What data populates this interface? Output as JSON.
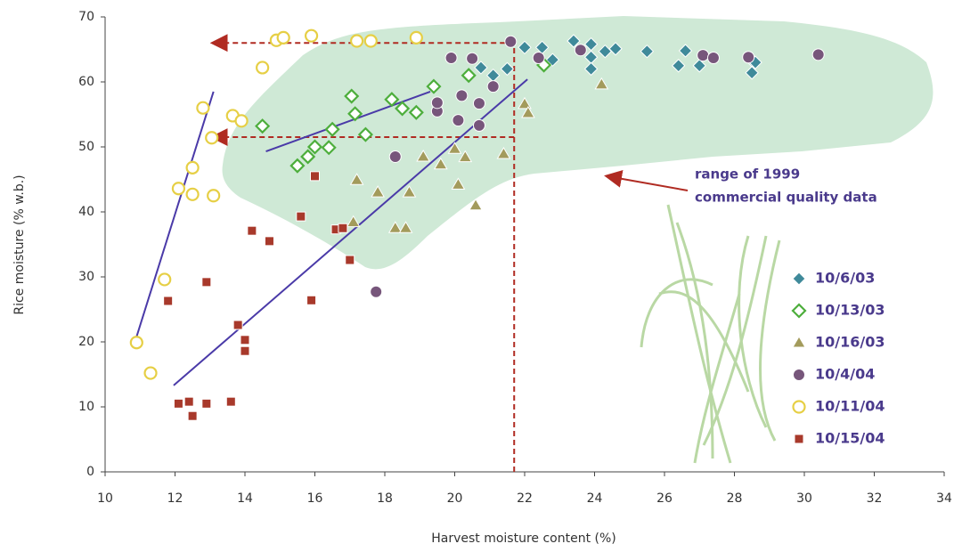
{
  "chart_data": {
    "type": "scatter",
    "xlabel": "Harvest moisture content (%)",
    "ylabel": "Rice moisture (% w.b.)",
    "xlim": [
      10,
      34
    ],
    "xticks": [
      10,
      12,
      14,
      16,
      18,
      20,
      22,
      24,
      26,
      28,
      30,
      32,
      34
    ],
    "ylim": [
      0,
      70
    ],
    "yticks": [
      0,
      10,
      20,
      30,
      40,
      50,
      60,
      70
    ],
    "annotation": [
      "range of 1999",
      "commercial quality data"
    ],
    "series": [
      {
        "name": "10/6/03",
        "color": "#3f8a9a",
        "marker": "diamond",
        "filled": true,
        "x": [
          20.75,
          21.1,
          21.5,
          22.0,
          22.5,
          22.8,
          23.4,
          23.9,
          23.9,
          23.9,
          24.3,
          24.6,
          25.5,
          26.4,
          26.6,
          27.0,
          28.5,
          28.6,
          28.5
        ],
        "y": [
          62.2,
          61,
          62,
          65.3,
          65.3,
          63.4,
          66.3,
          65.8,
          63.8,
          62,
          64.7,
          65.1,
          64.7,
          62.5,
          64.8,
          62.5,
          63.3,
          63,
          61.4
        ]
      },
      {
        "name": "10/13/03",
        "color": "#4dae3c",
        "marker": "diamond",
        "filled": false,
        "x": [
          14.5,
          15.5,
          15.8,
          16,
          16.4,
          16.5,
          17.05,
          17.15,
          17.45,
          18.2,
          18.5,
          18.9,
          19.4,
          20.4,
          22.55
        ],
        "y": [
          53.2,
          47.1,
          48.5,
          50,
          49.9,
          52.7,
          57.8,
          55.1,
          51.9,
          57.3,
          55.9,
          55.3,
          59.3,
          61,
          62.6
        ]
      },
      {
        "name": "10/16/03",
        "color": "#a39b5c",
        "marker": "triangle",
        "filled": true,
        "x": [
          17.2,
          17.1,
          17.8,
          18.3,
          18.6,
          18.7,
          19.1,
          19.6,
          20,
          20.1,
          20.3,
          20.6,
          21.4,
          22.0,
          22.1,
          24.2
        ],
        "y": [
          44.9,
          38.4,
          43,
          37.5,
          37.5,
          43,
          48.5,
          47.3,
          49.7,
          44.2,
          48.4,
          41,
          48.9,
          56.6,
          55.2,
          59.6
        ]
      },
      {
        "name": "10/4/04",
        "color": "#77567b",
        "marker": "circle",
        "filled": true,
        "x": [
          18.3,
          17.75,
          19.5,
          19.5,
          19.9,
          20.1,
          20.2,
          20.5,
          20.7,
          20.7,
          21.1,
          21.6,
          22.4,
          23.6,
          27.1,
          27.4,
          28.4,
          30.4
        ],
        "y": [
          48.5,
          27.7,
          55.5,
          56.8,
          63.7,
          54.1,
          57.9,
          63.6,
          56.7,
          53.3,
          59.3,
          66.2,
          63.7,
          64.9,
          64.1,
          63.7,
          63.8,
          64.2
        ]
      },
      {
        "name": "10/11/04",
        "color": "#e6cf45",
        "marker": "circle",
        "filled": false,
        "x": [
          10.9,
          11.3,
          11.7,
          12.1,
          12.5,
          12.5,
          12.8,
          13.05,
          13.1,
          13.65,
          13.9,
          14.5,
          14.9,
          15.1,
          15.9,
          17.2,
          17.6,
          18.9
        ],
        "y": [
          19.9,
          15.2,
          29.6,
          43.6,
          46.8,
          42.7,
          56,
          51.4,
          42.5,
          54.8,
          54,
          62.2,
          66.4,
          66.8,
          67.1,
          66.3,
          66.3,
          66.8
        ]
      },
      {
        "name": "10/15/04",
        "color": "#a8392b",
        "marker": "square",
        "filled": true,
        "x": [
          11.8,
          12.1,
          12.4,
          12.5,
          12.9,
          12.9,
          13.6,
          13.8,
          14,
          14,
          14.2,
          14.7,
          15.6,
          16,
          15.9,
          16.6,
          16.8,
          17
        ],
        "y": [
          26.3,
          10.5,
          10.8,
          8.6,
          10.5,
          29.2,
          10.8,
          22.6,
          20.3,
          18.6,
          37.1,
          35.5,
          39.3,
          45.5,
          26.4,
          37.3,
          37.5,
          32.6
        ]
      }
    ],
    "trend_lines": [
      {
        "x": [
          10.9,
          13.1
        ],
        "y": [
          20.8,
          58.5
        ]
      },
      {
        "x": [
          11.96,
          22.08
        ],
        "y": [
          13.3,
          60.4
        ]
      },
      {
        "x": [
          14.6,
          19.3
        ],
        "y": [
          49.3,
          58.5
        ]
      }
    ],
    "guides": {
      "x": 21.7,
      "y": [
        66,
        51.5
      ],
      "arrow_x": 13.1
    }
  }
}
